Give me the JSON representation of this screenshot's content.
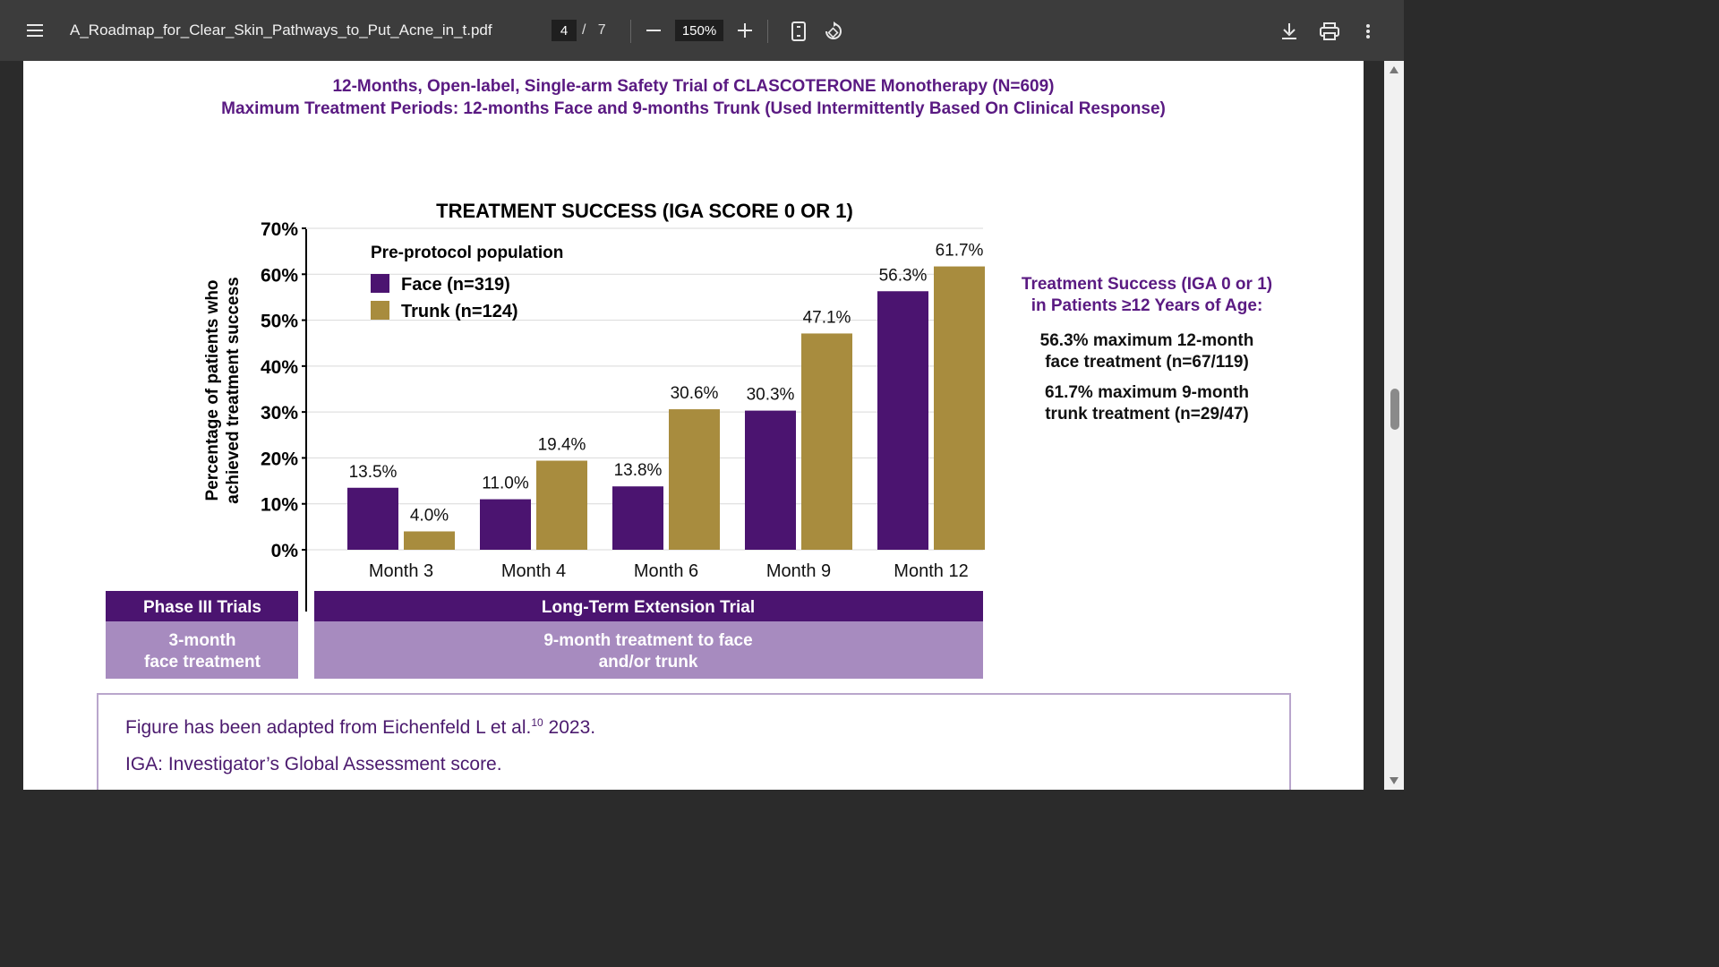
{
  "toolbar": {
    "filename": "A_Roadmap_for_Clear_Skin_Pathways_to_Put_Acne_in_t.pdf",
    "current_page": "4",
    "total_pages": "7",
    "page_separator": "/",
    "zoom": "150%",
    "icons": [
      "menu-icon",
      "zoom-out-icon",
      "zoom-in-icon",
      "fit-page-icon",
      "rotate-icon",
      "download-icon",
      "print-icon",
      "more-icon"
    ]
  },
  "document": {
    "title_line1": "12-Months, Open-label, Single-arm Safety Trial of CLASCOTERONE Monotherapy (N=609)",
    "title_line2": "Maximum Treatment Periods: 12-months Face and 9-months Trunk (Used Intermittently Based On Clinical Response)",
    "side_title_line1": "Treatment Success (IGA 0 or 1)",
    "side_title_line2": "in Patients ≥12 Years of Age:",
    "side_face_line1": "56.3% maximum 12-month",
    "side_face_line2": "face treatment (n=67/119)",
    "side_trunk_line1": "61.7% maximum 9-month",
    "side_trunk_line2": "trunk treatment (n=29/47)",
    "note_line1": "Figure has been adapted from Eichenfeld L et al.",
    "note_sup": "10",
    "note_year": " 2023.",
    "note_line2": "IGA: Investigator’s Global Assessment score.",
    "colors": {
      "title": "#5a1a82",
      "face": "#4b1470",
      "trunk": "#a88c3e",
      "band_dark": "#4b1470",
      "band_light": "#a78bbf"
    }
  },
  "chart_data": {
    "type": "bar",
    "title": "TREATMENT SUCCESS (IGA SCORE 0 OR 1)",
    "ylabel_line1": "Percentage  of patients who",
    "ylabel_line2": "achieved treatment success",
    "xlabel": "",
    "ylim": [
      0,
      70
    ],
    "yticks": [
      "0%",
      "10%",
      "20%",
      "30%",
      "40%",
      "50%",
      "60%",
      "70%"
    ],
    "categories": [
      "Month 3",
      "Month 4",
      "Month 6",
      "Month 9",
      "Month 12"
    ],
    "legend_title": "Pre-protocol population",
    "series": [
      {
        "name": "Face (n=319)",
        "color": "#4b1470",
        "values": [
          13.5,
          11.0,
          13.8,
          30.3,
          56.3
        ],
        "labels": [
          "13.5%",
          "11.0%",
          "13.8%",
          "30.3%",
          "56.3%"
        ]
      },
      {
        "name": "Trunk (n=124)",
        "color": "#a88c3e",
        "values": [
          4.0,
          19.4,
          30.6,
          47.1,
          61.7
        ],
        "labels": [
          "4.0%",
          "19.4%",
          "30.6%",
          "47.1%",
          "61.7%"
        ]
      }
    ],
    "bands": {
      "phase3_title": "Phase III Trials",
      "phase3_line1": "3-month",
      "phase3_line2": "face treatment",
      "lte_title": "Long-Term Extension Trial",
      "lte_line1": "9-month treatment to face",
      "lte_line2": "and/or trunk"
    }
  }
}
